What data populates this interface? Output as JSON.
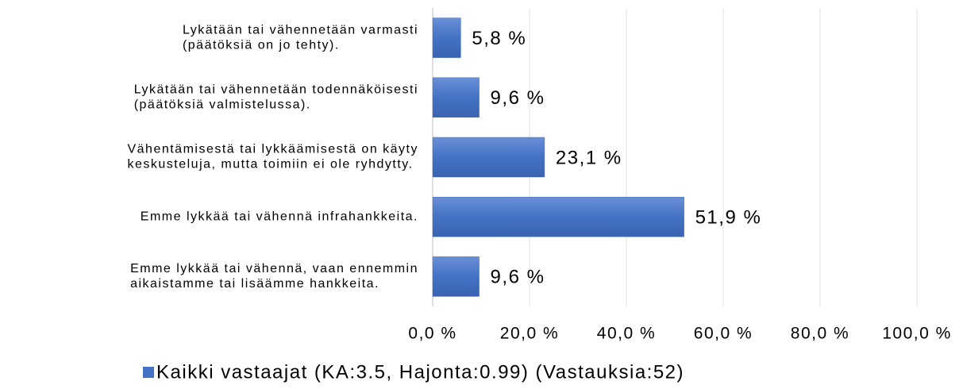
{
  "chart_data": {
    "type": "bar",
    "orientation": "horizontal",
    "categories": [
      [
        "Lykätään tai vähennetään varmasti",
        "(päätöksiä on jo tehty)."
      ],
      [
        "Lykätään tai vähennetään todennäköisesti",
        "(päätöksiä valmistelussa)."
      ],
      [
        "Vähentämisestä tai lykkäämisestä on käyty",
        "keskusteluja, mutta toimiin ei ole ryhdytty."
      ],
      [
        "Emme lykkää tai vähennä infrahankkeita."
      ],
      [
        "Emme lykkää tai vähennä, vaan ennemmin",
        "aikaistamme tai lisäämme hankkeita."
      ]
    ],
    "series": [
      {
        "name": "Kaikki vastaajat (KA:3.5, Hajonta:0.99) (Vastauksia:52)",
        "color": "#4472c4",
        "values": [
          5.8,
          9.6,
          23.1,
          51.9,
          9.6
        ],
        "value_labels": [
          "5,8 %",
          "9,6 %",
          "23,1 %",
          "51,9 %",
          "9,6 %"
        ]
      }
    ],
    "xlim": [
      0,
      100
    ],
    "xticks": [
      {
        "value": 0,
        "label": "0,0 %"
      },
      {
        "value": 20,
        "label": "20,0 %"
      },
      {
        "value": 40,
        "label": "40,0 %"
      },
      {
        "value": 60,
        "label": "60,0 %"
      },
      {
        "value": 80,
        "label": "80,0 %"
      },
      {
        "value": 100,
        "label": "100,0 %"
      }
    ],
    "grid": true,
    "legend": "bottom"
  }
}
